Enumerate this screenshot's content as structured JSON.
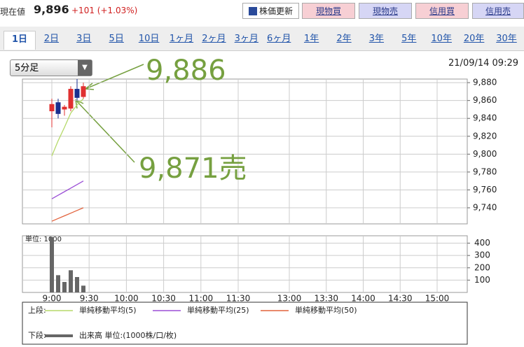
{
  "header": {
    "label": "現在値",
    "price": "9,896",
    "change": "+101 (+1.03%)"
  },
  "buttons": [
    "株価更新",
    "現物買",
    "現物売",
    "信用買",
    "信用売"
  ],
  "tabs": [
    "1日",
    "2日",
    "3日",
    "5日",
    "10日",
    "1ヶ月",
    "2ヶ月",
    "3ヶ月",
    "6ヶ月",
    "1年",
    "2年",
    "3年",
    "5年",
    "10年",
    "20年",
    "30年"
  ],
  "interval_select": "5分足",
  "timestamp": "21/09/14 09:29",
  "chart_data": [
    {
      "type": "candlestick",
      "categories": [
        null,
        null,
        null,
        null,
        null,
        null
      ],
      "ohlc": {
        "open": [
          9848,
          9858,
          9850,
          9851,
          9873,
          9864
        ],
        "high": [
          9862,
          9862,
          9855,
          9876,
          9884,
          9880
        ],
        "low": [
          9830,
          9840,
          9843,
          9848,
          9860,
          9862
        ],
        "close": [
          9856,
          9845,
          9853,
          9873,
          9863,
          9876
        ]
      },
      "up_color": "#e03030",
      "down_color": "#1a2f8f",
      "series": [
        {
          "name": "単純移動平均(5)",
          "color": "#b5d96a",
          "values": [
            9798,
            9815,
            9830,
            9846,
            9855,
            9862
          ]
        },
        {
          "name": "単純移動平均(25)",
          "color": "#9b4fd6",
          "values": [
            9750,
            9754,
            9758,
            9762,
            9766,
            9770
          ]
        },
        {
          "name": "単純移動平均(50)",
          "color": "#e2623c",
          "values": [
            9725,
            9728,
            9731,
            9734,
            9737,
            9740
          ]
        }
      ],
      "legend_label": "上段:",
      "ylim": [
        9722,
        9884
      ],
      "yticks": [
        {
          "value": 9740,
          "label": "9,740"
        },
        {
          "value": 9760,
          "label": "9,760"
        },
        {
          "value": 9780,
          "label": "9,780"
        },
        {
          "value": 9800,
          "label": "9,800"
        },
        {
          "value": 9820,
          "label": "9,820"
        },
        {
          "value": 9840,
          "label": "9,840"
        },
        {
          "value": 9860,
          "label": "9,860"
        },
        {
          "value": 9880,
          "label": "9,880"
        }
      ],
      "grid": true,
      "annotations": [
        {
          "text": "9,886"
        },
        {
          "text": "9,871売"
        }
      ],
      "annotation_color": "#76a040"
    },
    {
      "type": "bar",
      "categories": [
        null,
        null,
        null,
        null,
        null,
        null
      ],
      "series": [
        {
          "name": "出来高 単位:(1000株/口/枚)",
          "color": "#666666",
          "values": [
            450,
            140,
            85,
            180,
            125,
            55
          ]
        }
      ],
      "legend_label": "下段:",
      "unit_label": "単位: 1000",
      "ylim": [
        0,
        460
      ],
      "yticks": [
        100,
        200,
        300,
        400
      ],
      "grid": true,
      "time_labels": [
        "9:00",
        "9:30",
        "10:00",
        "10:30",
        "11:00",
        "11:30",
        "13:00",
        "13:30",
        "14:00",
        "14:30",
        "15:00"
      ]
    }
  ]
}
